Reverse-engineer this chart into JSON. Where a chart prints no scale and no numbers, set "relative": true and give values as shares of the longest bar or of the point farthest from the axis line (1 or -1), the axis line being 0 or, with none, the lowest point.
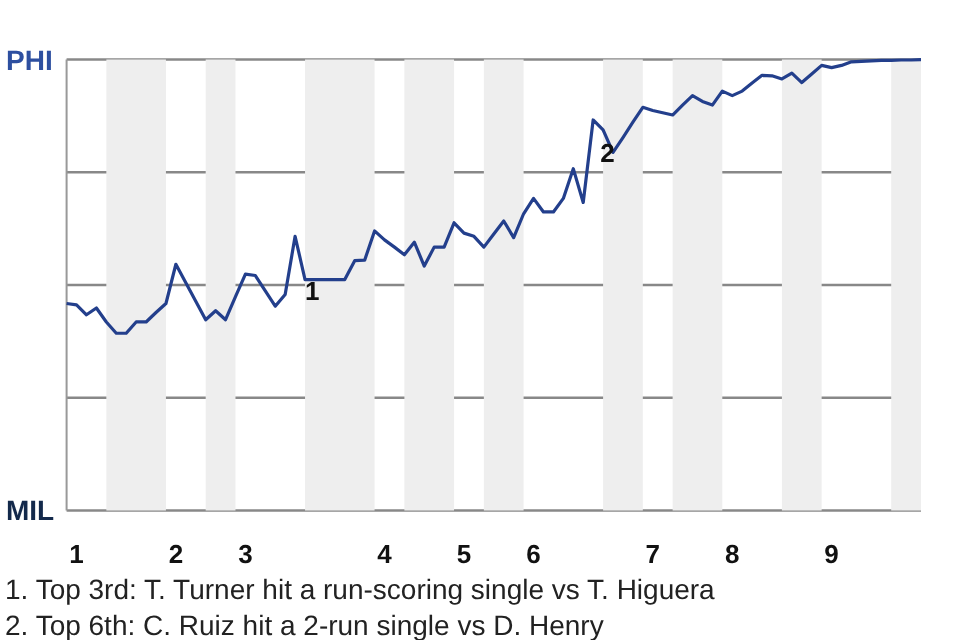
{
  "chart_data": {
    "type": "line",
    "relative": true,
    "categories": [
      null,
      "1",
      null,
      null,
      null,
      null,
      null,
      null,
      null,
      null,
      null,
      "2",
      null,
      null,
      null,
      null,
      null,
      null,
      "3",
      null,
      null,
      null,
      null,
      null,
      null,
      null,
      null,
      null,
      null,
      null,
      null,
      null,
      "4",
      null,
      null,
      null,
      null,
      null,
      null,
      null,
      "5",
      null,
      null,
      null,
      null,
      null,
      null,
      "6",
      null,
      null,
      null,
      null,
      null,
      null,
      null,
      null,
      null,
      null,
      null,
      "7",
      null,
      null,
      null,
      null,
      null,
      null,
      null,
      "8",
      null,
      null,
      null,
      null,
      null,
      null,
      null,
      null,
      null,
      "9",
      null,
      null,
      null,
      null,
      null,
      null,
      null,
      null,
      null
    ],
    "series": [
      {
        "color": "#233f8c",
        "values": [
          0.459,
          0.456,
          0.434,
          0.449,
          0.418,
          0.393,
          0.393,
          0.418,
          0.418,
          0.439,
          0.459,
          0.546,
          0.505,
          0.464,
          0.423,
          0.443,
          0.423,
          0.474,
          0.524,
          0.521,
          0.487,
          0.453,
          0.479,
          0.608,
          0.512,
          0.512,
          0.512,
          0.512,
          0.512,
          0.554,
          0.555,
          0.62,
          0.6,
          0.584,
          0.567,
          0.595,
          0.542,
          0.584,
          0.584,
          0.638,
          0.615,
          0.608,
          0.584,
          0.613,
          0.642,
          0.605,
          0.658,
          0.692,
          0.662,
          0.662,
          0.692,
          0.758,
          0.683,
          0.866,
          0.844,
          0.794,
          0.827,
          0.861,
          0.894,
          0.887,
          0.882,
          0.877,
          0.899,
          0.92,
          0.907,
          0.899,
          0.93,
          0.92,
          0.93,
          0.948,
          0.965,
          0.964,
          0.957,
          0.97,
          0.949,
          0.968,
          0.987,
          0.982,
          0.987,
          0.995,
          0.996,
          0.997,
          0.998,
          0.998,
          0.999,
          0.999,
          1
        ]
      }
    ],
    "ref_lines": [
      {
        "axis": "y",
        "value": 0,
        "color": "#888888"
      },
      {
        "axis": "y",
        "value": 0.25,
        "color": "#888888"
      },
      {
        "axis": "y",
        "value": 0.5,
        "color": "#888888"
      },
      {
        "axis": "y",
        "value": 0.75,
        "color": "#888888"
      },
      {
        "axis": "y",
        "value": 1,
        "color": "#888888"
      }
    ],
    "annotations": [
      "PHI",
      "MIL",
      "1",
      "2",
      "1. Top 3rd: T. Turner hit a run-scoring single vs T. Higuera",
      "2. Top 6th: C. Ruiz hit a 2-run single vs D. Henry"
    ]
  }
}
